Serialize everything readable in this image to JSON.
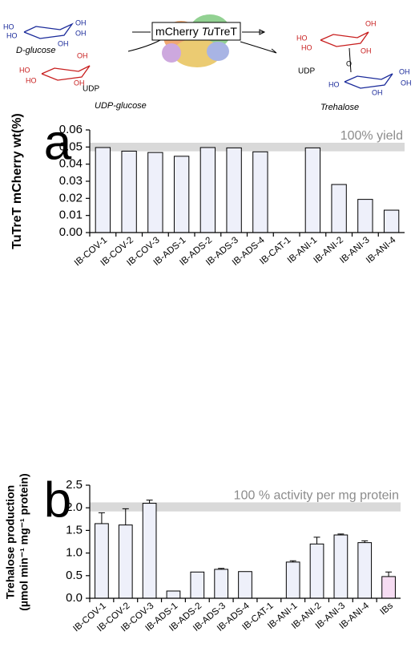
{
  "scheme": {
    "enzyme": {
      "prefix": "mCherry ",
      "italic": "Tu",
      "rest": "TreT"
    },
    "substrate": "D-glucose",
    "donor": "UDP-glucose",
    "product": "Trehalose",
    "byproduct": "UDP",
    "donor_group": "UDP",
    "glucose_atoms": [
      "HO",
      "HO",
      "OH",
      "OH",
      "OH"
    ],
    "donor_atoms": [
      "OH",
      "HO",
      "HO",
      "OH"
    ],
    "trehalose_atoms": [
      "OH",
      "HO",
      "HO",
      "OH",
      "O",
      "HO",
      "OH",
      "OH",
      "OH"
    ]
  },
  "chart_data": [
    {
      "type": "bar",
      "panel": "a",
      "ylabel": "TuTreT mCherry wt(%)",
      "annotation": "100% yield",
      "band": [
        0.0475,
        0.0525
      ],
      "categories": [
        "IB-COV-1",
        "IB-COV-2",
        "IB-COV-3",
        "IB-ADS-1",
        "IB-ADS-2",
        "IB-ADS-3",
        "IB-ADS-4",
        "IB-CAT-1",
        "IB-ANI-1",
        "IB-ANI-2",
        "IB-ANI-3",
        "IB-ANI-4"
      ],
      "values": [
        0.0497,
        0.0476,
        0.0468,
        0.0446,
        0.0497,
        0.0495,
        0.0472,
        0,
        0.0495,
        0.0281,
        0.0194,
        0.0131
      ],
      "colors": [
        "#eef0fa",
        "#eef0fa",
        "#eef0fa",
        "#eef0fa",
        "#eef0fa",
        "#eef0fa",
        "#eef0fa",
        "#eef0fa",
        "#eef0fa",
        "#eef0fa",
        "#eef0fa",
        "#eef0fa"
      ],
      "ylim": [
        0,
        0.06
      ],
      "yticks": [
        {
          "value": 0,
          "label": "0.00"
        },
        0.01,
        0.02,
        0.03,
        0.04,
        0.05,
        0.06
      ]
    },
    {
      "type": "bar",
      "panel": "b",
      "ylabel": [
        "Trehalose production",
        "(µmol min⁻¹ mg⁻¹ protein)"
      ],
      "annotation": "100 % activity per mg protein",
      "band": [
        1.92,
        2.12
      ],
      "categories": [
        "IB-COV-1",
        "IB-COV-2",
        "IB-COV-3",
        "IB-ADS-1",
        "IB-ADS-2",
        "IB-ADS-3",
        "IB-ADS-4",
        "IB-CAT-1",
        "IB-ANI-1",
        "IB-ANI-2",
        "IB-ANI-3",
        "IB-ANI-4",
        "IBs"
      ],
      "values": [
        1.65,
        1.62,
        2.1,
        0.16,
        0.58,
        0.64,
        0.59,
        0,
        0.8,
        1.2,
        1.4,
        1.23,
        0.48
      ],
      "errors": [
        0.24,
        0.36,
        0.07,
        null,
        null,
        0.02,
        null,
        null,
        0.03,
        0.15,
        0.02,
        0.04,
        0.1
      ],
      "colors": [
        "#eef0fa",
        "#eef0fa",
        "#eef0fa",
        "#eef0fa",
        "#eef0fa",
        "#eef0fa",
        "#eef0fa",
        "#eef0fa",
        "#eef0fa",
        "#eef0fa",
        "#eef0fa",
        "#eef0fa",
        "#f6dcf2"
      ],
      "ylim": [
        0,
        2.5
      ],
      "yticks": [
        {
          "value": 0,
          "label": "0.0"
        },
        0.5,
        {
          "value": 1,
          "label": "1.0"
        },
        1.5,
        {
          "value": 2,
          "label": "2.0"
        },
        2.5
      ]
    }
  ]
}
